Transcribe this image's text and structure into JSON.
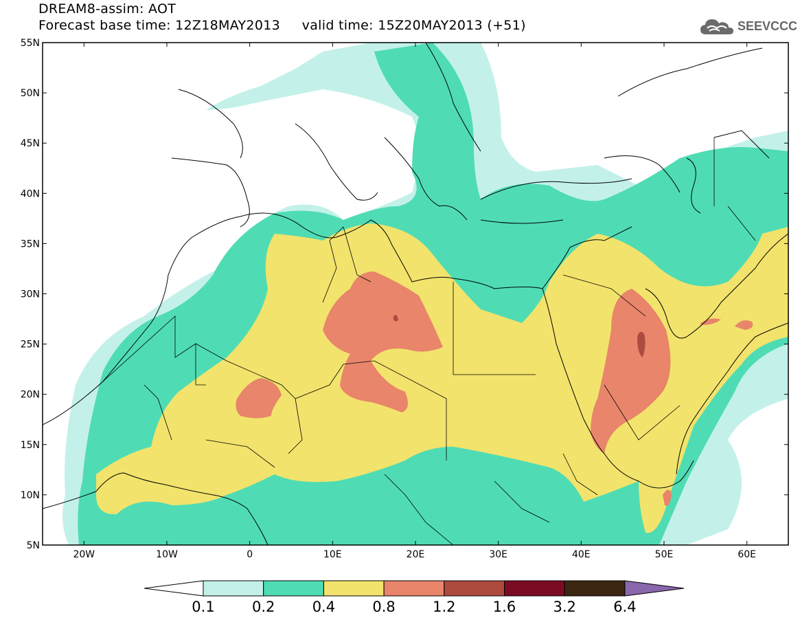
{
  "header": {
    "title_line1": "DREAM8-assim: AOT",
    "title_line2": "Forecast base time: 12Z18MAY2013     valid time: 15Z20MAY2013 (+51)"
  },
  "logo": {
    "text": "SEEVCCC",
    "icon": "cloud-icon"
  },
  "map": {
    "lon_range": [
      -25,
      65
    ],
    "lat_range": [
      5,
      55
    ],
    "y_ticks": [
      "55N",
      "50N",
      "45N",
      "40N",
      "35N",
      "30N",
      "25N",
      "20N",
      "15N",
      "10N",
      "5N"
    ],
    "x_ticks": [
      "20W",
      "10W",
      "0",
      "10E",
      "20E",
      "30E",
      "40E",
      "50E",
      "60E"
    ]
  },
  "colorbar": {
    "labels": [
      "0.1",
      "0.2",
      "0.4",
      "0.8",
      "1.2",
      "1.6",
      "3.2",
      "6.4"
    ],
    "colors": {
      "below": "#ffffff",
      "c01": "#c3f1ea",
      "c02": "#4fdcb4",
      "c04": "#f2e36c",
      "c08": "#e8856a",
      "c12": "#ad4b3e",
      "c16": "#7b0b22",
      "c32": "#3b2612",
      "above": "#8a66ad"
    }
  }
}
